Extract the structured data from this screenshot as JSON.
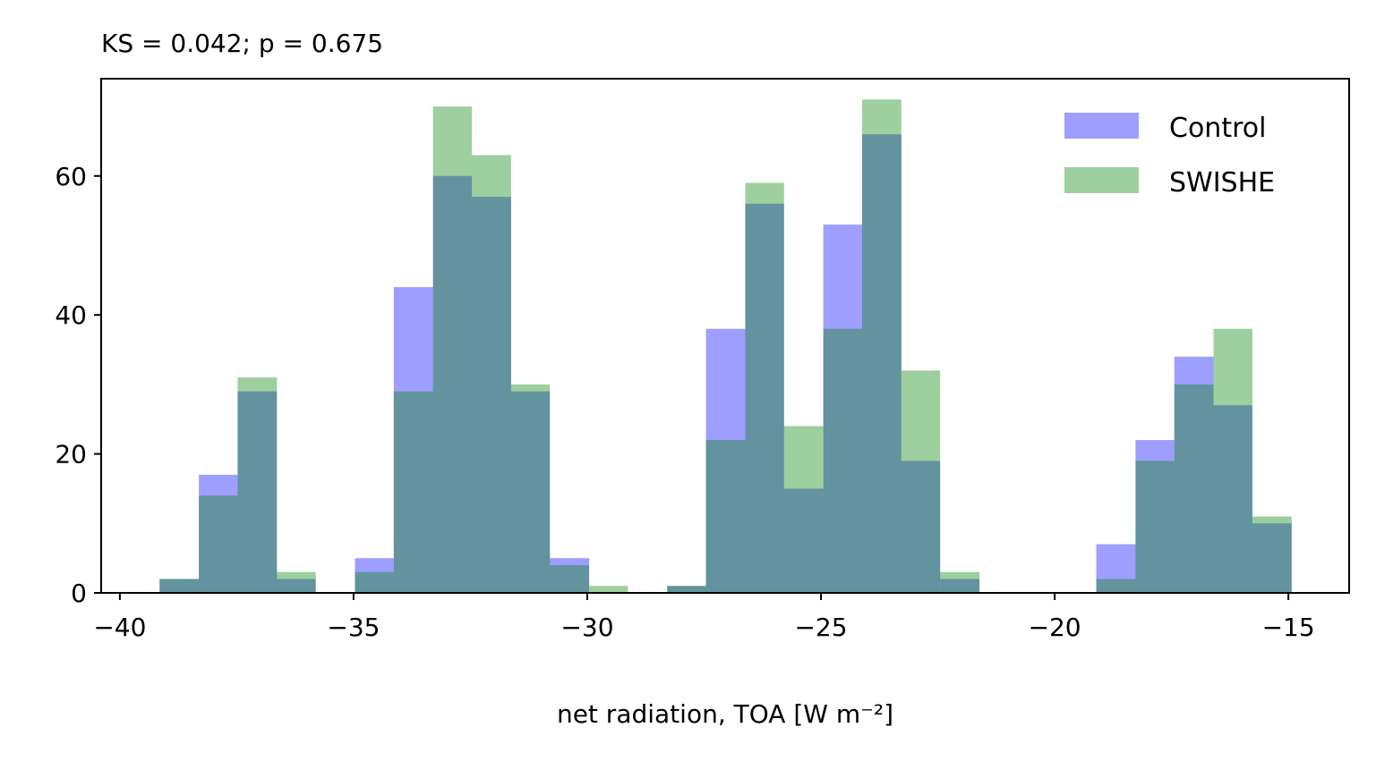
{
  "chart_data": {
    "type": "bar",
    "title": "KS = 0.042; p = 0.675",
    "xlabel": "net radiation, TOA [W m⁻²]",
    "ylabel": "",
    "xlim": [
      -40.4,
      -13.7
    ],
    "ylim": [
      0,
      74
    ],
    "xticks": [
      -40,
      -35,
      -30,
      -25,
      -20,
      -15
    ],
    "yticks": [
      0,
      20,
      40,
      60
    ],
    "grid": false,
    "legend": "top-right",
    "bin_edges": [
      -39.15,
      -38.31,
      -37.48,
      -36.64,
      -35.81,
      -34.97,
      -34.14,
      -33.3,
      -32.47,
      -31.63,
      -30.8,
      -29.96,
      -29.13,
      -28.29,
      -27.46,
      -26.62,
      -25.79,
      -24.95,
      -24.12,
      -23.28,
      -22.45,
      -21.61,
      -20.78,
      -19.94,
      -19.11,
      -18.27,
      -17.44,
      -16.6,
      -15.77,
      -14.93
    ],
    "series": [
      {
        "name": "Control",
        "color": "#0000ff",
        "opacity": 0.38,
        "values": [
          2,
          17,
          29,
          2,
          0,
          5,
          44,
          60,
          57,
          29,
          5,
          0,
          0,
          1,
          38,
          56,
          15,
          53,
          66,
          19,
          2,
          0,
          0,
          0,
          7,
          22,
          34,
          27,
          10
        ]
      },
      {
        "name": "SWISHE",
        "color": "#008000",
        "opacity": 0.38,
        "values": [
          2,
          14,
          31,
          3,
          0,
          3,
          29,
          70,
          63,
          30,
          4,
          1,
          0,
          1,
          22,
          59,
          24,
          38,
          71,
          32,
          3,
          0,
          0,
          0,
          2,
          19,
          30,
          38,
          11
        ]
      }
    ]
  }
}
